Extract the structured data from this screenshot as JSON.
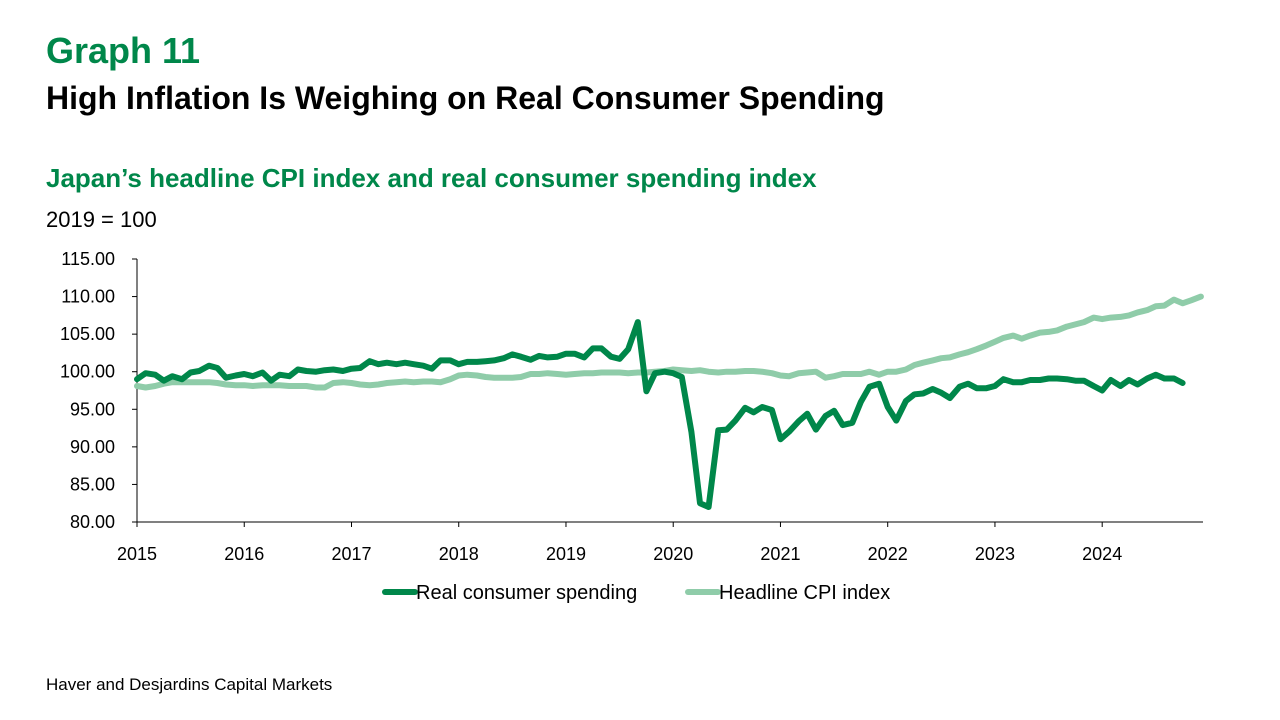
{
  "header": {
    "graph_label": "Graph 11",
    "title": "High Inflation Is Weighing on Real Consumer Spending",
    "subtitle": "Japan’s headline CPI index and real consumer spending index",
    "unit": "2019 = 100"
  },
  "source": "Haver and Desjardins Capital Markets",
  "chart_data": {
    "type": "line",
    "ylim": [
      80,
      115
    ],
    "yticks": [
      "115.00",
      "110.00",
      "105.00",
      "100.00",
      "95.00",
      "90.00",
      "85.00",
      "80.00"
    ],
    "xlim": [
      2015,
      2024.94
    ],
    "xticks": [
      "2015",
      "2016",
      "2017",
      "2018",
      "2019",
      "2020",
      "2021",
      "2022",
      "2023",
      "2024"
    ],
    "grid": false,
    "legend_position": "bottom",
    "series": [
      {
        "name": "Real consumer spending",
        "color": "#00874a",
        "points": [
          [
            2015.0,
            99.0
          ],
          [
            2015.08,
            99.8
          ],
          [
            2015.17,
            99.6
          ],
          [
            2015.25,
            98.8
          ],
          [
            2015.33,
            99.4
          ],
          [
            2015.42,
            99.0
          ],
          [
            2015.5,
            99.9
          ],
          [
            2015.58,
            100.1
          ],
          [
            2015.67,
            100.8
          ],
          [
            2015.75,
            100.5
          ],
          [
            2015.83,
            99.2
          ],
          [
            2015.92,
            99.5
          ],
          [
            2016.0,
            99.7
          ],
          [
            2016.08,
            99.4
          ],
          [
            2016.17,
            99.9
          ],
          [
            2016.25,
            98.8
          ],
          [
            2016.33,
            99.6
          ],
          [
            2016.42,
            99.4
          ],
          [
            2016.5,
            100.3
          ],
          [
            2016.58,
            100.1
          ],
          [
            2016.67,
            100.0
          ],
          [
            2016.75,
            100.2
          ],
          [
            2016.83,
            100.3
          ],
          [
            2016.92,
            100.1
          ],
          [
            2017.0,
            100.4
          ],
          [
            2017.08,
            100.5
          ],
          [
            2017.17,
            101.4
          ],
          [
            2017.25,
            101.0
          ],
          [
            2017.33,
            101.2
          ],
          [
            2017.42,
            101.0
          ],
          [
            2017.5,
            101.2
          ],
          [
            2017.58,
            101.0
          ],
          [
            2017.67,
            100.8
          ],
          [
            2017.75,
            100.4
          ],
          [
            2017.83,
            101.5
          ],
          [
            2017.92,
            101.5
          ],
          [
            2018.0,
            101.0
          ],
          [
            2018.08,
            101.3
          ],
          [
            2018.17,
            101.3
          ],
          [
            2018.25,
            101.4
          ],
          [
            2018.33,
            101.5
          ],
          [
            2018.42,
            101.8
          ],
          [
            2018.5,
            102.3
          ],
          [
            2018.58,
            102.0
          ],
          [
            2018.67,
            101.6
          ],
          [
            2018.75,
            102.1
          ],
          [
            2018.83,
            101.9
          ],
          [
            2018.92,
            102.0
          ],
          [
            2019.0,
            102.4
          ],
          [
            2019.08,
            102.4
          ],
          [
            2019.17,
            101.9
          ],
          [
            2019.25,
            103.1
          ],
          [
            2019.33,
            103.1
          ],
          [
            2019.42,
            102.0
          ],
          [
            2019.5,
            101.7
          ],
          [
            2019.58,
            103.0
          ],
          [
            2019.67,
            106.6
          ],
          [
            2019.75,
            97.4
          ],
          [
            2019.83,
            99.8
          ],
          [
            2019.92,
            100.0
          ],
          [
            2020.0,
            99.8
          ],
          [
            2020.08,
            99.3
          ],
          [
            2020.17,
            92.0
          ],
          [
            2020.25,
            82.5
          ],
          [
            2020.33,
            82.0
          ],
          [
            2020.42,
            92.2
          ],
          [
            2020.5,
            92.3
          ],
          [
            2020.58,
            93.5
          ],
          [
            2020.67,
            95.2
          ],
          [
            2020.75,
            94.6
          ],
          [
            2020.83,
            95.3
          ],
          [
            2020.92,
            94.9
          ],
          [
            2021.0,
            91.0
          ],
          [
            2021.08,
            92.0
          ],
          [
            2021.17,
            93.4
          ],
          [
            2021.25,
            94.4
          ],
          [
            2021.33,
            92.3
          ],
          [
            2021.42,
            94.1
          ],
          [
            2021.5,
            94.8
          ],
          [
            2021.58,
            92.9
          ],
          [
            2021.67,
            93.2
          ],
          [
            2021.75,
            96.0
          ],
          [
            2021.83,
            98.0
          ],
          [
            2021.92,
            98.4
          ],
          [
            2022.0,
            95.3
          ],
          [
            2022.08,
            93.5
          ],
          [
            2022.17,
            96.1
          ],
          [
            2022.25,
            97.0
          ],
          [
            2022.33,
            97.1
          ],
          [
            2022.42,
            97.7
          ],
          [
            2022.5,
            97.2
          ],
          [
            2022.58,
            96.5
          ],
          [
            2022.67,
            98.0
          ],
          [
            2022.75,
            98.4
          ],
          [
            2022.83,
            97.8
          ],
          [
            2022.92,
            97.8
          ],
          [
            2023.0,
            98.1
          ],
          [
            2023.08,
            99.0
          ],
          [
            2023.17,
            98.6
          ],
          [
            2023.25,
            98.6
          ],
          [
            2023.33,
            98.9
          ],
          [
            2023.42,
            98.9
          ],
          [
            2023.5,
            99.1
          ],
          [
            2023.58,
            99.1
          ],
          [
            2023.67,
            99.0
          ],
          [
            2023.75,
            98.8
          ],
          [
            2023.83,
            98.8
          ],
          [
            2023.92,
            98.1
          ],
          [
            2024.0,
            97.5
          ],
          [
            2024.08,
            98.9
          ],
          [
            2024.17,
            98.1
          ],
          [
            2024.25,
            98.9
          ],
          [
            2024.33,
            98.3
          ],
          [
            2024.42,
            99.1
          ],
          [
            2024.5,
            99.6
          ],
          [
            2024.58,
            99.1
          ],
          [
            2024.67,
            99.1
          ],
          [
            2024.75,
            98.5
          ]
        ]
      },
      {
        "name": "Headline CPI index",
        "color": "#8fcca9",
        "points": [
          [
            2015.0,
            98.1
          ],
          [
            2015.08,
            97.9
          ],
          [
            2015.17,
            98.1
          ],
          [
            2015.25,
            98.4
          ],
          [
            2015.33,
            98.6
          ],
          [
            2015.42,
            98.6
          ],
          [
            2015.5,
            98.6
          ],
          [
            2015.58,
            98.6
          ],
          [
            2015.67,
            98.6
          ],
          [
            2015.75,
            98.5
          ],
          [
            2015.83,
            98.3
          ],
          [
            2015.92,
            98.2
          ],
          [
            2016.0,
            98.2
          ],
          [
            2016.08,
            98.1
          ],
          [
            2016.17,
            98.2
          ],
          [
            2016.25,
            98.2
          ],
          [
            2016.33,
            98.2
          ],
          [
            2016.42,
            98.1
          ],
          [
            2016.5,
            98.1
          ],
          [
            2016.58,
            98.1
          ],
          [
            2016.67,
            97.9
          ],
          [
            2016.75,
            97.9
          ],
          [
            2016.83,
            98.5
          ],
          [
            2016.92,
            98.6
          ],
          [
            2017.0,
            98.5
          ],
          [
            2017.08,
            98.3
          ],
          [
            2017.17,
            98.2
          ],
          [
            2017.25,
            98.3
          ],
          [
            2017.33,
            98.5
          ],
          [
            2017.42,
            98.6
          ],
          [
            2017.5,
            98.7
          ],
          [
            2017.58,
            98.6
          ],
          [
            2017.67,
            98.7
          ],
          [
            2017.75,
            98.7
          ],
          [
            2017.83,
            98.6
          ],
          [
            2017.92,
            99.0
          ],
          [
            2018.0,
            99.5
          ],
          [
            2018.08,
            99.6
          ],
          [
            2018.17,
            99.5
          ],
          [
            2018.25,
            99.3
          ],
          [
            2018.33,
            99.2
          ],
          [
            2018.42,
            99.2
          ],
          [
            2018.5,
            99.2
          ],
          [
            2018.58,
            99.3
          ],
          [
            2018.67,
            99.7
          ],
          [
            2018.75,
            99.7
          ],
          [
            2018.83,
            99.8
          ],
          [
            2018.92,
            99.7
          ],
          [
            2019.0,
            99.6
          ],
          [
            2019.08,
            99.7
          ],
          [
            2019.17,
            99.8
          ],
          [
            2019.25,
            99.8
          ],
          [
            2019.33,
            99.9
          ],
          [
            2019.42,
            99.9
          ],
          [
            2019.5,
            99.9
          ],
          [
            2019.58,
            99.8
          ],
          [
            2019.67,
            99.9
          ],
          [
            2019.75,
            99.9
          ],
          [
            2019.83,
            100.0
          ],
          [
            2019.92,
            100.1
          ],
          [
            2020.0,
            100.3
          ],
          [
            2020.08,
            100.2
          ],
          [
            2020.17,
            100.1
          ],
          [
            2020.25,
            100.2
          ],
          [
            2020.33,
            100.0
          ],
          [
            2020.42,
            99.9
          ],
          [
            2020.5,
            100.0
          ],
          [
            2020.58,
            100.0
          ],
          [
            2020.67,
            100.1
          ],
          [
            2020.75,
            100.1
          ],
          [
            2020.83,
            100.0
          ],
          [
            2020.92,
            99.8
          ],
          [
            2021.0,
            99.5
          ],
          [
            2021.08,
            99.4
          ],
          [
            2021.17,
            99.8
          ],
          [
            2021.25,
            99.9
          ],
          [
            2021.33,
            100.0
          ],
          [
            2021.42,
            99.2
          ],
          [
            2021.5,
            99.4
          ],
          [
            2021.58,
            99.7
          ],
          [
            2021.67,
            99.7
          ],
          [
            2021.75,
            99.7
          ],
          [
            2021.83,
            100.0
          ],
          [
            2021.92,
            99.6
          ],
          [
            2022.0,
            100.0
          ],
          [
            2022.08,
            100.0
          ],
          [
            2022.17,
            100.3
          ],
          [
            2022.25,
            100.9
          ],
          [
            2022.33,
            101.2
          ],
          [
            2022.42,
            101.5
          ],
          [
            2022.5,
            101.8
          ],
          [
            2022.58,
            101.9
          ],
          [
            2022.67,
            102.3
          ],
          [
            2022.75,
            102.6
          ],
          [
            2022.83,
            103.0
          ],
          [
            2022.92,
            103.5
          ],
          [
            2023.0,
            104.0
          ],
          [
            2023.08,
            104.5
          ],
          [
            2023.17,
            104.8
          ],
          [
            2023.25,
            104.4
          ],
          [
            2023.33,
            104.8
          ],
          [
            2023.42,
            105.2
          ],
          [
            2023.5,
            105.3
          ],
          [
            2023.58,
            105.5
          ],
          [
            2023.67,
            106.0
          ],
          [
            2023.75,
            106.3
          ],
          [
            2023.83,
            106.6
          ],
          [
            2023.92,
            107.2
          ],
          [
            2024.0,
            107.0
          ],
          [
            2024.08,
            107.2
          ],
          [
            2024.17,
            107.3
          ],
          [
            2024.25,
            107.5
          ],
          [
            2024.33,
            107.9
          ],
          [
            2024.42,
            108.2
          ],
          [
            2024.5,
            108.7
          ],
          [
            2024.58,
            108.8
          ],
          [
            2024.67,
            109.6
          ],
          [
            2024.75,
            109.1
          ],
          [
            2024.83,
            109.5
          ],
          [
            2024.92,
            110.0
          ]
        ]
      }
    ]
  }
}
